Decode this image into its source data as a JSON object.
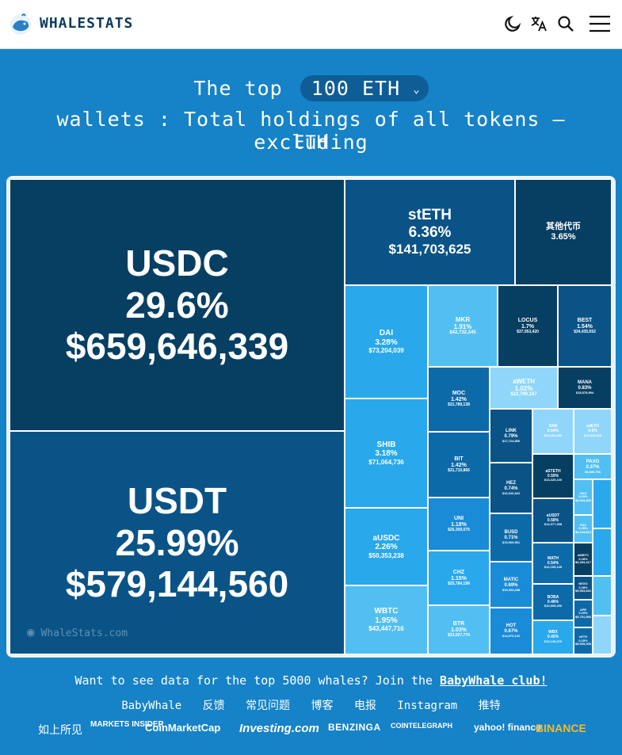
{
  "header": {
    "brand": "WHALESTATS",
    "icons": [
      "moon-icon",
      "translate-icon",
      "search-icon",
      "menu-icon"
    ]
  },
  "headline": {
    "prefix": "The top",
    "selector_value": "100 ETH",
    "line2": "wallets : Total holdings of all tokens — excluding",
    "line3": "ETH"
  },
  "treemap": {
    "watermark": "WhaleStats.com",
    "tiles": [
      {
        "name": "USDC",
        "pct": "29.6%",
        "value": "$659,646,339"
      },
      {
        "name": "USDT",
        "pct": "25.99%",
        "value": "$579,144,560"
      },
      {
        "name": "stETH",
        "pct": "6.36%",
        "value": "$141,703,625"
      },
      {
        "name": "其他代币",
        "pct": "3.65%",
        "value": ""
      },
      {
        "name": "DAI",
        "pct": "3.28%",
        "value": "$73,204,039"
      },
      {
        "name": "MKR",
        "pct": "1.91%",
        "value": "$42,732,345"
      },
      {
        "name": "LOCUS",
        "pct": "1.7%",
        "value": "$37,953,420"
      },
      {
        "name": "BEST",
        "pct": "1.54%",
        "value": "$34,435,652"
      },
      {
        "name": "SHIB",
        "pct": "3.18%",
        "value": "$71,064,736"
      },
      {
        "name": "MOC",
        "pct": "1.42%",
        "value": "$31,789,138"
      },
      {
        "name": "aWETH",
        "pct": "1.02%",
        "value": "$22,799,167"
      },
      {
        "name": "MANA",
        "pct": "0.83%",
        "value": "$18,578,994"
      },
      {
        "name": "LINK",
        "pct": "0.79%",
        "value": "$17,724,856"
      },
      {
        "name": "SXM",
        "pct": "0.64%",
        "value": "$14,280,689"
      },
      {
        "name": "sdETH",
        "pct": "0.6%",
        "value": "$13,528,828"
      },
      {
        "name": "BIT",
        "pct": "1.42%",
        "value": "$31,710,866"
      },
      {
        "name": "HEZ",
        "pct": "0.74%",
        "value": "$16,626,842"
      },
      {
        "name": "aSTETH",
        "pct": "0.59%",
        "value": "$13,329,100"
      },
      {
        "name": "PAXG",
        "pct": "0.37%",
        "value": "$8,389,766"
      },
      {
        "name": "aUSDC",
        "pct": "2.26%",
        "value": "$50,353,238"
      },
      {
        "name": "UNI",
        "pct": "1.18%",
        "value": "$26,309,075"
      },
      {
        "name": "BUSD",
        "pct": "0.71%",
        "value": "$15,969,561"
      },
      {
        "name": "aUSDT",
        "pct": "0.58%",
        "value": "$12,977,398"
      },
      {
        "name": "GNO",
        "pct": "0.29%",
        "value": "$6,504,409"
      },
      {
        "name": "PAX",
        "pct": "0.28%",
        "value": "$6,344,812"
      },
      {
        "name": "CHZ",
        "pct": "1.15%",
        "value": "$25,784,199"
      },
      {
        "name": "MATIC",
        "pct": "0.69%",
        "value": "$15,393,288"
      },
      {
        "name": "MATH",
        "pct": "0.54%",
        "value": "$12,159,149"
      },
      {
        "name": "aWBTC",
        "pct": "0.28%",
        "value": "$6,284,417"
      },
      {
        "name": "WBTC",
        "pct": "1.95%",
        "value": "$43,447,716"
      },
      {
        "name": "BOBA",
        "pct": "0.48%",
        "value": "$10,905,290"
      },
      {
        "name": "NEXO",
        "pct": "0.28%",
        "value": "$5,963,841"
      },
      {
        "name": "BTR",
        "pct": "1.03%",
        "value": "$23,027,774"
      },
      {
        "name": "HOT",
        "pct": "0.67%",
        "value": "$14,970,132"
      },
      {
        "name": "WBX",
        "pct": "0.45%",
        "value": "$10,146,079"
      },
      {
        "name": "APE",
        "pct": "0.25%",
        "value": "$5,751,566"
      },
      {
        "name": "cETH",
        "pct": "0.25%",
        "value": "$5,665,408"
      }
    ]
  },
  "cta": {
    "text": "Want to see data for the top 5000 whales? Join the",
    "link": "BabyWhale club!"
  },
  "footer_links": [
    "BabyWhale",
    "反馈",
    "常见问题",
    "博客",
    "电报",
    "Instagram",
    "推特"
  ],
  "press": {
    "label": "如上所见",
    "logos": [
      "MARKETS INSIDER",
      "CoinMarketCap",
      "Investing.com",
      "BENZINGA",
      "COINTELEGRAPH",
      "yahoo! finance",
      "BINANCE"
    ]
  },
  "colors": {
    "background": "#1682c7",
    "darkest": "#073f63",
    "dark": "#0a5387",
    "mid": "#0d6aa9",
    "blue": "#1a8bd6",
    "bright": "#29a8ec",
    "light": "#52bff2",
    "pale": "#8fd6fa"
  }
}
